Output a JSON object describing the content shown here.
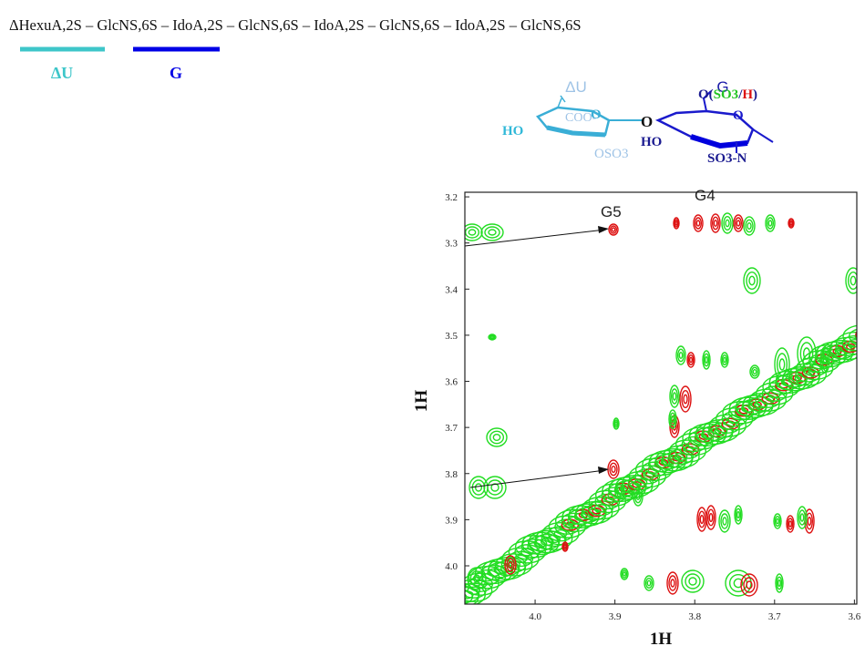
{
  "title": "ΔHexuA,2S – GlcNS,6S – IdoA,2S – GlcNS,6S – IdoA,2S – GlcNS,6S – IdoA,2S – GlcNS,6S",
  "legend": [
    {
      "label": "ΔU",
      "color": "#3ec6c9"
    },
    {
      "label": "G",
      "color": "#0000e6"
    }
  ],
  "structure": {
    "unit_u": "ΔU",
    "unit_g": "G",
    "u_carboxyl": "COO-",
    "u_hydroxyl": "HO",
    "u_ring_oxygen": "O",
    "u_sulfate": "OSO3",
    "linkage": "O",
    "g_hydroxyl": "HO",
    "g_ring_oxygen": "O",
    "g_amine": "SO3-N",
    "g_six": [
      "O(",
      "SO3",
      "/",
      "H",
      ")"
    ]
  },
  "spectrum": {
    "xlabel": "1H",
    "ylabel": "1H",
    "xlim": [
      4.088,
      3.597
    ],
    "ylim": [
      3.19,
      4.083
    ],
    "xticks": [
      {
        "value": 4,
        "label": "4.0"
      },
      3.9,
      3.8,
      3.7,
      3.6
    ],
    "yticks": [
      3.2,
      3.3,
      3.4,
      3.5,
      3.6,
      3.7,
      3.8,
      3.9,
      {
        "value": 4,
        "label": "4.0"
      }
    ],
    "annotations": [
      "G5",
      "G4"
    ]
  }
}
